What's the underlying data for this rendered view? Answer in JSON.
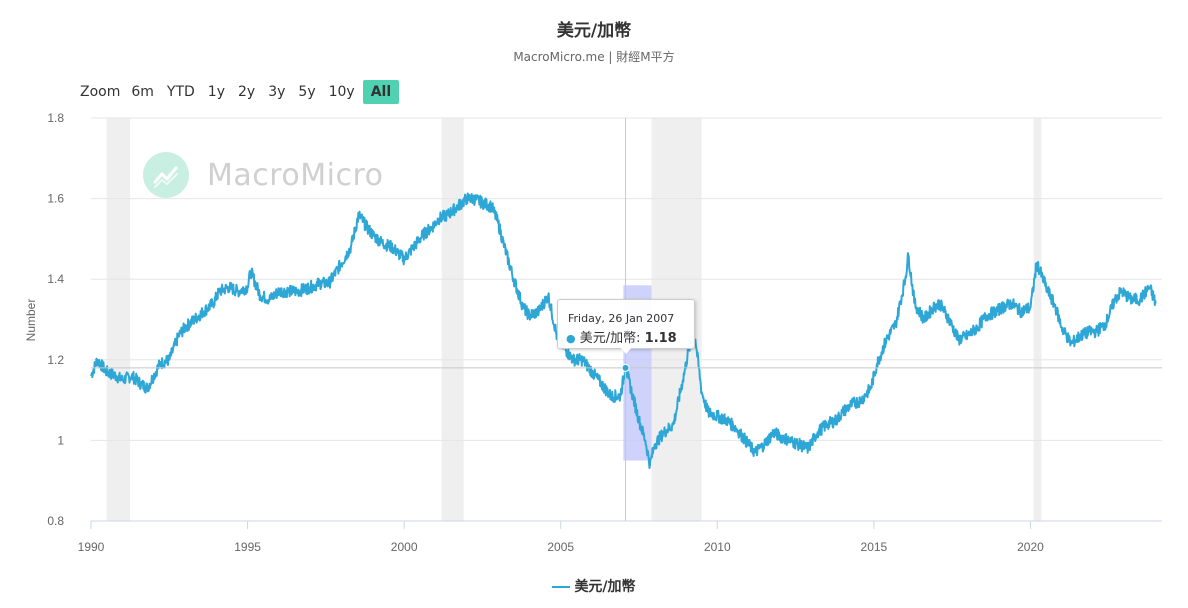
{
  "header": {
    "title": "美元/加幣",
    "subtitle": "MacroMicro.me | 財經M平方"
  },
  "zoom": {
    "label": "Zoom",
    "buttons": [
      "6m",
      "YTD",
      "1y",
      "2y",
      "3y",
      "5y",
      "10y",
      "All"
    ],
    "active": "All"
  },
  "watermark": {
    "text": "MacroMicro",
    "logo_icon": "chart-logo-icon"
  },
  "tooltip": {
    "date": "Friday, 26 Jan 2007",
    "series_label": "美元/加幣: ",
    "value": "1.18"
  },
  "colors": {
    "line": "#2ea7d6",
    "recession": "#efefef",
    "accent": "#4fd1b2",
    "selection": "#c7cbfa"
  },
  "chart_data": {
    "type": "line",
    "title": "美元/加幣",
    "subtitle": "MacroMicro.me | 財經M平方",
    "xlabel": "",
    "ylabel": "Number",
    "xlim": [
      1990,
      2024.2
    ],
    "ylim": [
      0.8,
      1.8
    ],
    "x_ticks": [
      "1990",
      "1995",
      "2000",
      "2005",
      "2010",
      "2015",
      "2020"
    ],
    "y_ticks": [
      "0.8",
      "1",
      "1.2",
      "1.4",
      "1.6",
      "1.8"
    ],
    "grid": true,
    "legend": "bottom-center",
    "recession_bands": [
      [
        1990.5,
        1991.25
      ],
      [
        2001.2,
        2001.9
      ],
      [
        2007.9,
        2009.5
      ],
      [
        2020.1,
        2020.35
      ]
    ],
    "crosshair": {
      "x": 2007.07,
      "y": 1.18
    },
    "selection": {
      "x": [
        2007.0,
        2007.9
      ],
      "y": [
        0.95,
        1.385
      ]
    },
    "series": [
      {
        "name": "美元/加幣",
        "x": [
          1990.0,
          1990.2,
          1990.5,
          1990.8,
          1991.0,
          1991.3,
          1991.6,
          1991.8,
          1992.0,
          1992.2,
          1992.5,
          1992.8,
          1993.0,
          1993.3,
          1993.6,
          1993.9,
          1994.1,
          1994.4,
          1994.7,
          1995.0,
          1995.1,
          1995.4,
          1995.7,
          1996.0,
          1996.3,
          1996.6,
          1997.0,
          1997.3,
          1997.6,
          1998.0,
          1998.3,
          1998.55,
          1998.8,
          1999.0,
          1999.3,
          1999.6,
          2000.0,
          2000.3,
          2000.6,
          2000.9,
          2001.1,
          2001.4,
          2001.7,
          2002.0,
          2002.2,
          2002.5,
          2002.8,
          2003.0,
          2003.2,
          2003.5,
          2003.8,
          2004.0,
          2004.3,
          2004.6,
          2004.9,
          2005.1,
          2005.4,
          2005.7,
          2006.0,
          2006.3,
          2006.6,
          2006.9,
          2007.07,
          2007.3,
          2007.5,
          2007.7,
          2007.85,
          2008.0,
          2008.3,
          2008.6,
          2008.9,
          2009.1,
          2009.3,
          2009.5,
          2009.7,
          2010.0,
          2010.3,
          2010.6,
          2010.9,
          2011.2,
          2011.5,
          2011.8,
          2012.0,
          2012.3,
          2012.6,
          2012.9,
          2013.2,
          2013.5,
          2013.8,
          2014.0,
          2014.3,
          2014.6,
          2014.9,
          2015.1,
          2015.4,
          2015.7,
          2016.0,
          2016.1,
          2016.3,
          2016.6,
          2016.9,
          2017.1,
          2017.4,
          2017.7,
          2018.0,
          2018.3,
          2018.6,
          2018.9,
          2019.1,
          2019.4,
          2019.7,
          2020.0,
          2020.2,
          2020.5,
          2020.8,
          2021.0,
          2021.3,
          2021.6,
          2021.9,
          2022.1,
          2022.4,
          2022.7,
          2022.9,
          2023.2,
          2023.5,
          2023.8,
          2024.0
        ],
        "values": [
          1.16,
          1.2,
          1.17,
          1.16,
          1.15,
          1.16,
          1.14,
          1.13,
          1.16,
          1.19,
          1.2,
          1.26,
          1.28,
          1.3,
          1.32,
          1.34,
          1.37,
          1.38,
          1.37,
          1.38,
          1.42,
          1.36,
          1.35,
          1.37,
          1.37,
          1.37,
          1.38,
          1.39,
          1.39,
          1.44,
          1.48,
          1.56,
          1.53,
          1.51,
          1.49,
          1.48,
          1.45,
          1.48,
          1.51,
          1.53,
          1.55,
          1.56,
          1.58,
          1.6,
          1.6,
          1.59,
          1.58,
          1.54,
          1.48,
          1.4,
          1.33,
          1.31,
          1.32,
          1.36,
          1.25,
          1.23,
          1.2,
          1.2,
          1.17,
          1.14,
          1.11,
          1.11,
          1.18,
          1.11,
          1.05,
          1.0,
          0.94,
          0.99,
          1.02,
          1.04,
          1.15,
          1.23,
          1.25,
          1.12,
          1.07,
          1.06,
          1.05,
          1.03,
          1.0,
          0.97,
          0.99,
          1.02,
          1.01,
          1.0,
          0.99,
          0.98,
          1.02,
          1.04,
          1.05,
          1.07,
          1.09,
          1.1,
          1.13,
          1.19,
          1.25,
          1.29,
          1.4,
          1.46,
          1.34,
          1.3,
          1.33,
          1.34,
          1.3,
          1.25,
          1.26,
          1.28,
          1.31,
          1.32,
          1.33,
          1.34,
          1.32,
          1.33,
          1.44,
          1.38,
          1.33,
          1.28,
          1.24,
          1.26,
          1.27,
          1.27,
          1.29,
          1.35,
          1.37,
          1.35,
          1.35,
          1.38,
          1.34
        ]
      }
    ]
  }
}
